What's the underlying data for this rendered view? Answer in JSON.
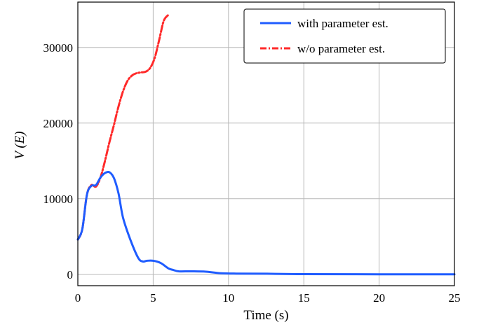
{
  "chart_data": {
    "type": "line",
    "title": "",
    "xlabel": "Time (s)",
    "ylabel": "V (E)",
    "xlim": [
      0,
      25
    ],
    "ylim": [
      -1500,
      36000
    ],
    "xticks": [
      0,
      5,
      10,
      15,
      20,
      25
    ],
    "yticks": [
      0,
      10000,
      20000,
      30000
    ],
    "xtick_labels": [
      "0",
      "5",
      "10",
      "15",
      "20",
      "25"
    ],
    "ytick_labels": [
      "0",
      "10000",
      "20000",
      "30000"
    ],
    "grid": true,
    "legend_position": "top-right",
    "series": [
      {
        "name": "with parameter est.",
        "color": "#1f5cff",
        "style": "solid",
        "x": [
          0,
          0.3,
          0.6,
          0.9,
          1.2,
          1.5,
          1.8,
          2.1,
          2.4,
          2.7,
          3.0,
          3.5,
          4.0,
          4.3,
          4.6,
          5.0,
          5.5,
          6.0,
          6.3,
          6.7,
          7.5,
          8.5,
          9.5,
          10.5,
          12.5,
          15,
          20,
          25
        ],
        "y": [
          4600,
          6000,
          10500,
          11700,
          11800,
          12800,
          13400,
          13500,
          12700,
          10700,
          7500,
          4500,
          2200,
          1700,
          1800,
          1800,
          1500,
          800,
          600,
          400,
          400,
          350,
          150,
          100,
          80,
          30,
          10,
          0
        ]
      },
      {
        "name": "w/o parameter est.",
        "color": "#ff2a2a",
        "style": "dashdot",
        "x": [
          0,
          0.3,
          0.6,
          0.9,
          1.2,
          1.5,
          1.8,
          2.1,
          2.4,
          2.7,
          3.0,
          3.3,
          3.6,
          3.9,
          4.2,
          4.5,
          4.8,
          5.1,
          5.4,
          5.7,
          6.0
        ],
        "y": [
          4600,
          6000,
          10500,
          11800,
          11600,
          12800,
          15000,
          17500,
          19800,
          22200,
          24200,
          25600,
          26300,
          26600,
          26700,
          26800,
          27300,
          28600,
          31000,
          33500,
          34300
        ]
      }
    ]
  }
}
